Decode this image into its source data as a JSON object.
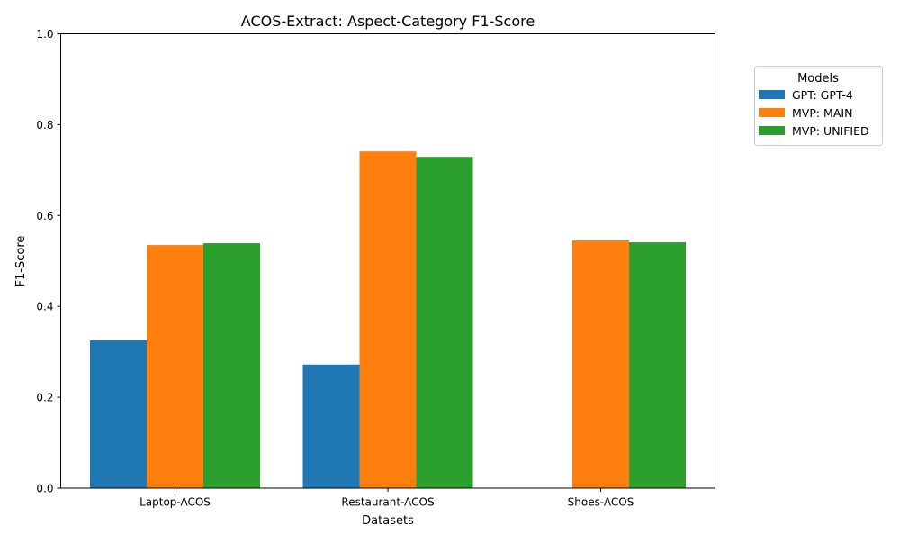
{
  "chart_data": {
    "type": "bar",
    "title": "ACOS-Extract: Aspect-Category F1-Score",
    "xlabel": "Datasets",
    "ylabel": "F1-Score",
    "ylim": [
      0,
      1.0
    ],
    "yticks": [
      "0.0",
      "0.2",
      "0.4",
      "0.6",
      "0.8",
      "1.0"
    ],
    "grid": false,
    "legend_title": "Models",
    "legend_position": "outside-top-right",
    "categories": [
      "Laptop-ACOS",
      "Restaurant-ACOS",
      "Shoes-ACOS"
    ],
    "series": [
      {
        "name": "GPT: GPT-4",
        "color": "#1f77b4",
        "values": [
          0.325,
          0.272,
          null
        ]
      },
      {
        "name": "MVP: MAIN",
        "color": "#ff7f0e",
        "values": [
          0.535,
          0.741,
          0.545
        ]
      },
      {
        "name": "MVP: UNIFIED",
        "color": "#2ca02c",
        "values": [
          0.539,
          0.729,
          0.541
        ]
      }
    ]
  }
}
